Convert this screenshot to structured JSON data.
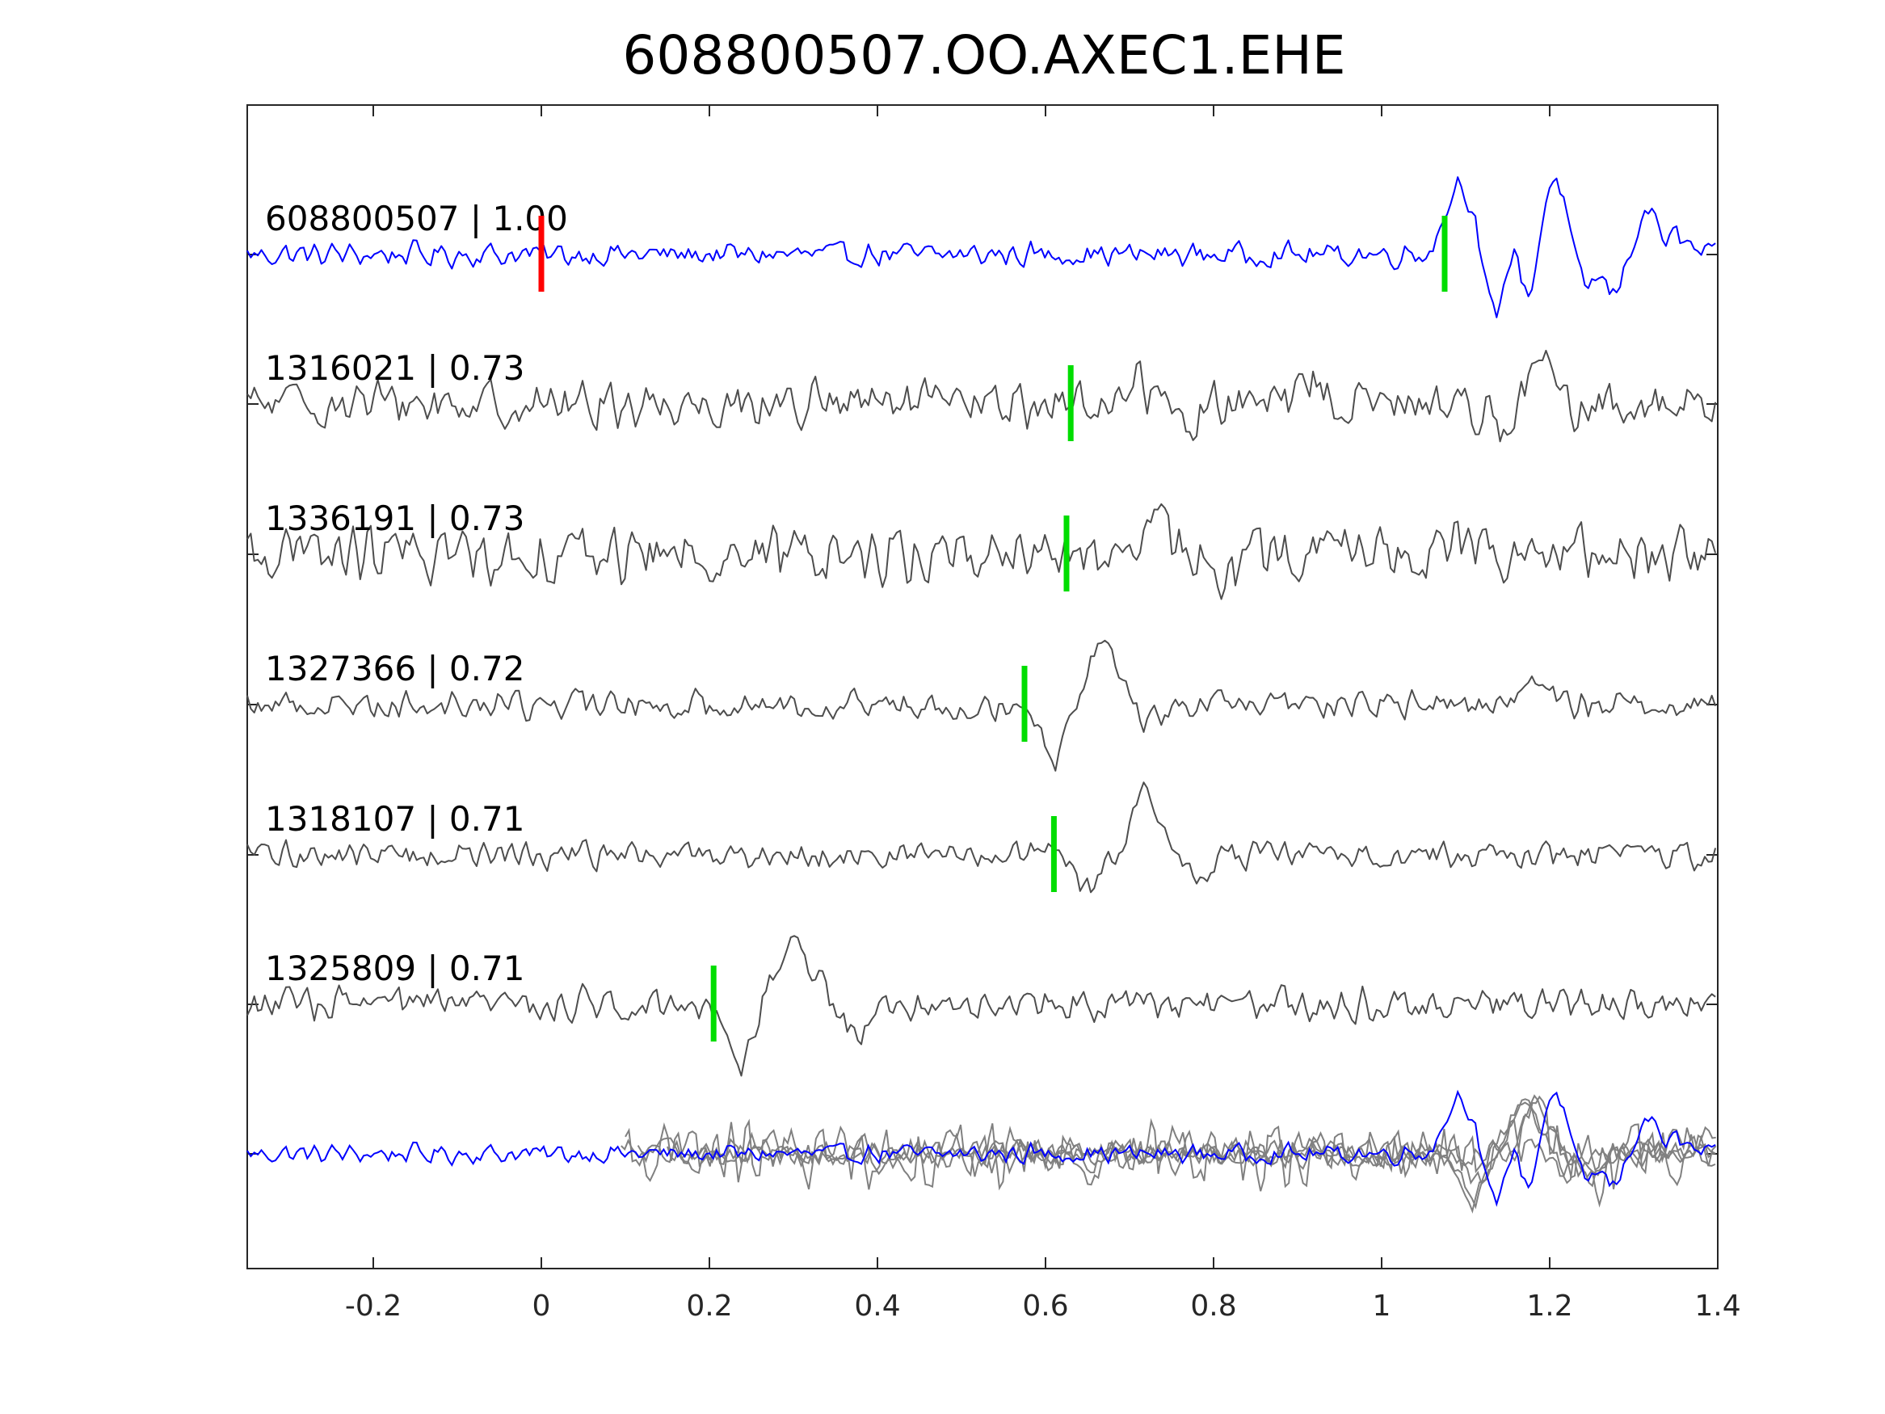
{
  "chart_data": {
    "type": "line",
    "title": "608800507.OO.AXEC1.EHE",
    "xlabel": "",
    "ylabel": "",
    "xlim": [
      -0.35,
      1.4
    ],
    "xticks": [
      -0.2,
      0,
      0.2,
      0.4,
      0.6,
      0.8,
      1,
      1.2,
      1.4
    ],
    "xtick_labels": [
      "-0.2",
      "0",
      "0.2",
      "0.4",
      "0.6",
      "0.8",
      "1",
      "1.2",
      "1.4"
    ],
    "grid": false,
    "colors": {
      "template": "#0000ff",
      "match": "#4d4d4d",
      "overlay_match": "#808080",
      "reference_pick": "#ff0000",
      "aligned_pick": "#00dd00",
      "axes": "#262626"
    },
    "traces": [
      {
        "label": "608800507 | 1.00",
        "id": "608800507",
        "cc": 1.0,
        "role": "template",
        "red_pick": 0.0,
        "green_pick": 1.075,
        "noise_amp": 0.12,
        "noise_freq": 55,
        "events": [
          {
            "t": 1.093,
            "a": 0.95,
            "w": 0.016
          },
          {
            "t": 1.135,
            "a": -0.9,
            "w": 0.012
          },
          {
            "t": 1.155,
            "a": 0.35,
            "w": 0.012
          },
          {
            "t": 1.175,
            "a": -0.7,
            "w": 0.011
          },
          {
            "t": 1.205,
            "a": 1.0,
            "w": 0.015
          },
          {
            "t": 1.24,
            "a": -0.45,
            "w": 0.011
          },
          {
            "t": 1.275,
            "a": -0.5,
            "w": 0.012
          },
          {
            "t": 1.315,
            "a": 0.55,
            "w": 0.012
          },
          {
            "t": 1.35,
            "a": 0.2,
            "w": 0.015
          }
        ]
      },
      {
        "label": "1316021 | 0.73",
        "id": "1316021",
        "cc": 0.73,
        "role": "match",
        "green_pick": 0.63,
        "noise_amp": 0.28,
        "noise_freq": 50,
        "events": [
          {
            "t": 0.71,
            "a": 0.45,
            "w": 0.012
          },
          {
            "t": 0.77,
            "a": -0.3,
            "w": 0.012
          },
          {
            "t": 0.92,
            "a": 0.4,
            "w": 0.013
          },
          {
            "t": 1.15,
            "a": -0.4,
            "w": 0.015
          },
          {
            "t": 1.19,
            "a": 0.75,
            "w": 0.016
          },
          {
            "t": 1.23,
            "a": -0.25,
            "w": 0.015
          }
        ]
      },
      {
        "label": "1336191 | 0.73",
        "id": "1336191",
        "cc": 0.73,
        "role": "match",
        "green_pick": 0.625,
        "noise_amp": 0.48,
        "noise_freq": 58,
        "events": [
          {
            "t": 0.69,
            "a": -0.55,
            "w": 0.012
          },
          {
            "t": 0.73,
            "a": 0.85,
            "w": 0.014
          },
          {
            "t": 0.82,
            "a": -0.5,
            "w": 0.012
          },
          {
            "t": 0.96,
            "a": 0.3,
            "w": 0.015
          },
          {
            "t": 1.1,
            "a": 0.3,
            "w": 0.015
          }
        ]
      },
      {
        "label": "1327366 | 0.72",
        "id": "1327366",
        "cc": 0.72,
        "role": "match",
        "green_pick": 0.575,
        "noise_amp": 0.17,
        "noise_freq": 52,
        "events": [
          {
            "t": 0.61,
            "a": -0.95,
            "w": 0.012
          },
          {
            "t": 0.67,
            "a": 0.95,
            "w": 0.02
          },
          {
            "t": 0.72,
            "a": -0.35,
            "w": 0.015
          },
          {
            "t": 1.18,
            "a": 0.3,
            "w": 0.02
          }
        ]
      },
      {
        "label": "1318107 | 0.71",
        "id": "1318107",
        "cc": 0.71,
        "role": "match",
        "green_pick": 0.61,
        "noise_amp": 0.17,
        "noise_freq": 52,
        "events": [
          {
            "t": 0.65,
            "a": -0.55,
            "w": 0.014
          },
          {
            "t": 0.72,
            "a": 1.0,
            "w": 0.016
          },
          {
            "t": 0.78,
            "a": -0.4,
            "w": 0.014
          }
        ]
      },
      {
        "label": "1325809 | 0.71",
        "id": "1325809",
        "cc": 0.71,
        "role": "match",
        "green_pick": 0.205,
        "noise_amp": 0.2,
        "noise_freq": 55,
        "events": [
          {
            "t": 0.24,
            "a": -0.95,
            "w": 0.014
          },
          {
            "t": 0.3,
            "a": 0.85,
            "w": 0.025
          },
          {
            "t": 0.37,
            "a": -0.45,
            "w": 0.015
          }
        ]
      }
    ],
    "overlay": {
      "description_hidden": true,
      "amplitude_scale": 0.8
    }
  }
}
